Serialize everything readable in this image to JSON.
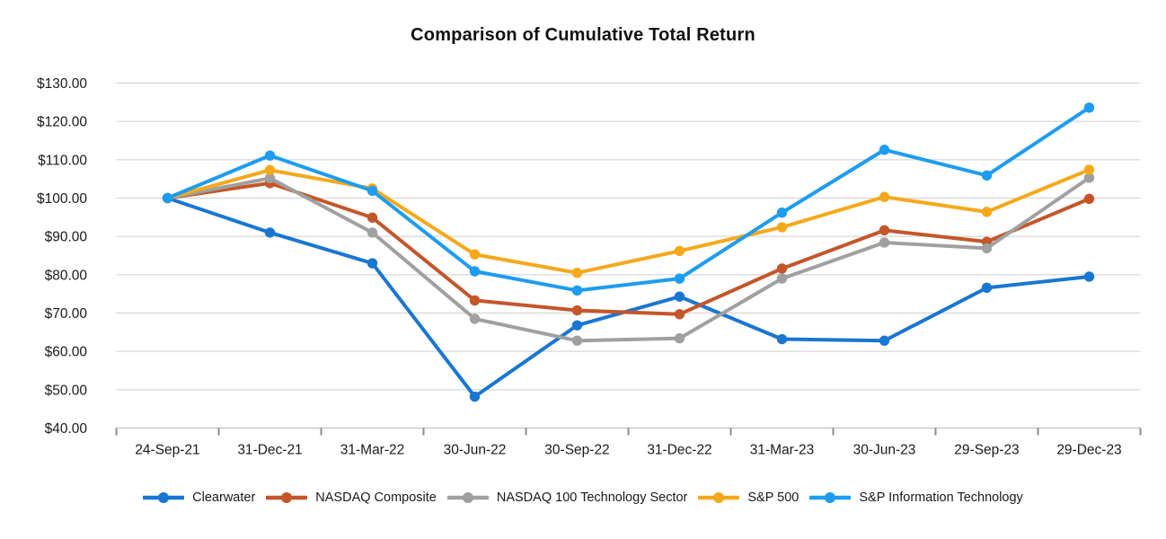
{
  "chart_data": {
    "type": "line",
    "title": "Comparison of Cumulative Total Return",
    "xlabel": "",
    "ylabel": "",
    "grid": true,
    "legend_position": "bottom",
    "x_categories": [
      "24-Sep-21",
      "31-Dec-21",
      "31-Mar-22",
      "30-Jun-22",
      "30-Sep-22",
      "31-Dec-22",
      "31-Mar-23",
      "30-Jun-23",
      "29-Sep-23",
      "29-Dec-23"
    ],
    "y_axis": {
      "min": 40,
      "max": 130,
      "step": 10,
      "tick_labels": [
        "$40.00",
        "$50.00",
        "$60.00",
        "$70.00",
        "$80.00",
        "$90.00",
        "$100.00",
        "$110.00",
        "$120.00",
        "$130.00"
      ]
    },
    "series": [
      {
        "name": "Clearwater",
        "color": "#1976D2",
        "values": [
          100,
          91.0,
          83.0,
          48.2,
          66.8,
          74.3,
          63.2,
          62.8,
          76.6,
          79.5
        ]
      },
      {
        "name": "NASDAQ Composite",
        "color": "#C4562A",
        "values": [
          100,
          103.9,
          94.9,
          73.3,
          70.7,
          69.7,
          81.6,
          91.6,
          88.6,
          99.8
        ]
      },
      {
        "name": "NASDAQ 100 Technology Sector",
        "color": "#A0A0A0",
        "values": [
          100,
          105.2,
          91.0,
          68.5,
          62.8,
          63.4,
          79.0,
          88.4,
          86.9,
          105.3
        ]
      },
      {
        "name": "S&P 500",
        "color": "#F4A91C",
        "values": [
          100,
          107.3,
          102.5,
          85.3,
          80.5,
          86.2,
          92.4,
          100.3,
          96.4,
          107.4
        ]
      },
      {
        "name": "S&P Information Technology",
        "color": "#1E9CF0",
        "values": [
          100,
          111.1,
          101.9,
          80.9,
          75.9,
          79.0,
          96.2,
          112.6,
          105.9,
          123.6
        ]
      }
    ],
    "style": {
      "gridline_color": "#DBDBDB",
      "axis_line_color": "#C9C9C9",
      "tick_mark_color": "#8C8C8C",
      "label_color": "#1a1a1a",
      "line_width": 4,
      "marker_radius": 5.7
    }
  }
}
